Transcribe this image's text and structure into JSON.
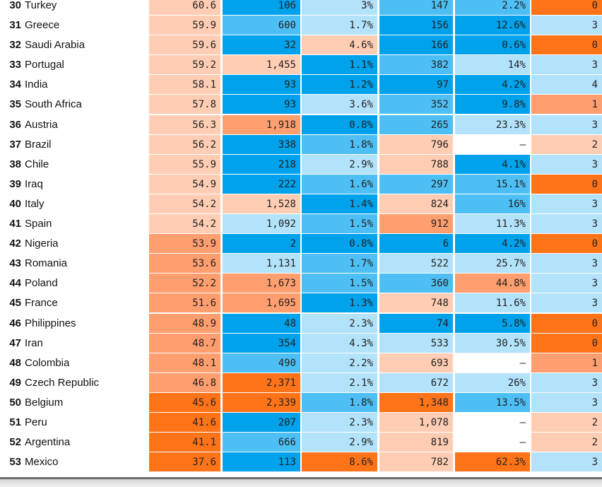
{
  "colors": {
    "orange_dark": "#ff7319",
    "orange_mid": "#ff9e6e",
    "orange_light": "#ffcdb3",
    "blue_dark": "#00a2ec",
    "blue_mid": "#4dbff4",
    "blue_light": "#b3e2fb",
    "empty": "#ffffff"
  },
  "rows": [
    {
      "rank": "30",
      "country": "Turkey",
      "c1": "60.6",
      "c2": "106",
      "c3": "3%",
      "c4": "147",
      "c5": "2.2%",
      "c6": "0"
    },
    {
      "rank": "31",
      "country": "Greece",
      "c1": "59.9",
      "c2": "600",
      "c3": "1.7%",
      "c4": "156",
      "c5": "12.6%",
      "c6": "3"
    },
    {
      "rank": "32",
      "country": "Saudi Arabia",
      "c1": "59.6",
      "c2": "32",
      "c3": "4.6%",
      "c4": "166",
      "c5": "0.6%",
      "c6": "0"
    },
    {
      "rank": "33",
      "country": "Portugal",
      "c1": "59.2",
      "c2": "1,455",
      "c3": "1.1%",
      "c4": "382",
      "c5": "14%",
      "c6": "3"
    },
    {
      "rank": "34",
      "country": "India",
      "c1": "58.1",
      "c2": "93",
      "c3": "1.2%",
      "c4": "97",
      "c5": "4.2%",
      "c6": "4"
    },
    {
      "rank": "35",
      "country": "South Africa",
      "c1": "57.8",
      "c2": "93",
      "c3": "3.6%",
      "c4": "352",
      "c5": "9.8%",
      "c6": "1"
    },
    {
      "rank": "36",
      "country": "Austria",
      "c1": "56.3",
      "c2": "1,918",
      "c3": "0.8%",
      "c4": "265",
      "c5": "23.3%",
      "c6": "3"
    },
    {
      "rank": "37",
      "country": "Brazil",
      "c1": "56.2",
      "c2": "338",
      "c3": "1.8%",
      "c4": "796",
      "c5": "–",
      "c6": "2"
    },
    {
      "rank": "38",
      "country": "Chile",
      "c1": "55.9",
      "c2": "218",
      "c3": "2.9%",
      "c4": "788",
      "c5": "4.1%",
      "c6": "3"
    },
    {
      "rank": "39",
      "country": "Iraq",
      "c1": "54.9",
      "c2": "222",
      "c3": "1.6%",
      "c4": "297",
      "c5": "15.1%",
      "c6": "0"
    },
    {
      "rank": "40",
      "country": "Italy",
      "c1": "54.2",
      "c2": "1,528",
      "c3": "1.4%",
      "c4": "824",
      "c5": "16%",
      "c6": "3"
    },
    {
      "rank": "41",
      "country": "Spain",
      "c1": "54.2",
      "c2": "1,092",
      "c3": "1.5%",
      "c4": "912",
      "c5": "11.3%",
      "c6": "3"
    },
    {
      "rank": "42",
      "country": "Nigeria",
      "c1": "53.9",
      "c2": "2",
      "c3": "0.8%",
      "c4": "6",
      "c5": "4.2%",
      "c6": "0"
    },
    {
      "rank": "43",
      "country": "Romania",
      "c1": "53.6",
      "c2": "1,131",
      "c3": "1.7%",
      "c4": "522",
      "c5": "25.7%",
      "c6": "3"
    },
    {
      "rank": "44",
      "country": "Poland",
      "c1": "52.2",
      "c2": "1,673",
      "c3": "1.5%",
      "c4": "360",
      "c5": "44.8%",
      "c6": "3"
    },
    {
      "rank": "45",
      "country": "France",
      "c1": "51.6",
      "c2": "1,695",
      "c3": "1.3%",
      "c4": "748",
      "c5": "11.6%",
      "c6": "3"
    },
    {
      "rank": "46",
      "country": "Philippines",
      "c1": "48.9",
      "c2": "48",
      "c3": "2.3%",
      "c4": "74",
      "c5": "5.8%",
      "c6": "0"
    },
    {
      "rank": "47",
      "country": "Iran",
      "c1": "48.7",
      "c2": "354",
      "c3": "4.3%",
      "c4": "533",
      "c5": "30.5%",
      "c6": "0"
    },
    {
      "rank": "48",
      "country": "Colombia",
      "c1": "48.1",
      "c2": "490",
      "c3": "2.2%",
      "c4": "693",
      "c5": "–",
      "c6": "1"
    },
    {
      "rank": "49",
      "country": "Czech Republic",
      "c1": "46.8",
      "c2": "2,371",
      "c3": "2.1%",
      "c4": "672",
      "c5": "26%",
      "c6": "3"
    },
    {
      "rank": "50",
      "country": "Belgium",
      "c1": "45.6",
      "c2": "2,339",
      "c3": "1.8%",
      "c4": "1,348",
      "c5": "13.5%",
      "c6": "3"
    },
    {
      "rank": "51",
      "country": "Peru",
      "c1": "41.6",
      "c2": "207",
      "c3": "2.3%",
      "c4": "1,078",
      "c5": "–",
      "c6": "2"
    },
    {
      "rank": "52",
      "country": "Argentina",
      "c1": "41.1",
      "c2": "666",
      "c3": "2.9%",
      "c4": "819",
      "c5": "–",
      "c6": "2"
    },
    {
      "rank": "53",
      "country": "Mexico",
      "c1": "37.6",
      "c2": "113",
      "c3": "8.6%",
      "c4": "782",
      "c5": "62.3%",
      "c6": "3"
    }
  ],
  "cell_tones": [
    [
      "orange_light",
      "blue_dark",
      "blue_light",
      "blue_mid",
      "blue_mid",
      "orange_dark"
    ],
    [
      "orange_light",
      "blue_mid",
      "blue_light",
      "blue_dark",
      "blue_dark",
      "blue_light"
    ],
    [
      "orange_light",
      "blue_dark",
      "orange_light",
      "blue_dark",
      "blue_dark",
      "orange_dark"
    ],
    [
      "orange_light",
      "orange_light",
      "blue_dark",
      "blue_mid",
      "blue_light",
      "blue_light"
    ],
    [
      "orange_light",
      "blue_dark",
      "blue_dark",
      "blue_dark",
      "blue_dark",
      "blue_light"
    ],
    [
      "orange_light",
      "blue_dark",
      "blue_light",
      "blue_mid",
      "blue_dark",
      "orange_mid"
    ],
    [
      "orange_light",
      "orange_mid",
      "blue_dark",
      "blue_mid",
      "blue_light",
      "blue_light"
    ],
    [
      "orange_light",
      "blue_dark",
      "blue_mid",
      "orange_light",
      "empty",
      "orange_light"
    ],
    [
      "orange_light",
      "blue_dark",
      "blue_light",
      "orange_light",
      "blue_dark",
      "blue_light"
    ],
    [
      "orange_light",
      "blue_dark",
      "blue_mid",
      "blue_mid",
      "blue_mid",
      "orange_dark"
    ],
    [
      "orange_light",
      "orange_light",
      "blue_dark",
      "orange_light",
      "blue_mid",
      "blue_light"
    ],
    [
      "orange_light",
      "blue_light",
      "blue_mid",
      "orange_mid",
      "blue_light",
      "blue_light"
    ],
    [
      "orange_mid",
      "blue_dark",
      "blue_dark",
      "blue_dark",
      "blue_dark",
      "orange_dark"
    ],
    [
      "orange_mid",
      "blue_light",
      "blue_mid",
      "blue_light",
      "blue_light",
      "blue_light"
    ],
    [
      "orange_mid",
      "orange_mid",
      "blue_mid",
      "blue_mid",
      "orange_mid",
      "blue_light"
    ],
    [
      "orange_mid",
      "orange_mid",
      "blue_dark",
      "orange_light",
      "blue_light",
      "blue_light"
    ],
    [
      "orange_mid",
      "blue_dark",
      "blue_light",
      "blue_dark",
      "blue_dark",
      "orange_dark"
    ],
    [
      "orange_mid",
      "blue_dark",
      "blue_light",
      "blue_light",
      "blue_light",
      "orange_dark"
    ],
    [
      "orange_mid",
      "blue_mid",
      "blue_light",
      "orange_light",
      "empty",
      "orange_mid"
    ],
    [
      "orange_mid",
      "orange_dark",
      "blue_light",
      "blue_light",
      "blue_light",
      "blue_light"
    ],
    [
      "orange_dark",
      "orange_dark",
      "blue_mid",
      "orange_dark",
      "blue_mid",
      "blue_light"
    ],
    [
      "orange_dark",
      "blue_dark",
      "blue_light",
      "orange_light",
      "empty",
      "orange_light"
    ],
    [
      "orange_dark",
      "blue_mid",
      "blue_light",
      "orange_light",
      "empty",
      "orange_light"
    ],
    [
      "orange_dark",
      "blue_dark",
      "orange_dark",
      "orange_light",
      "orange_dark",
      "blue_light"
    ]
  ]
}
